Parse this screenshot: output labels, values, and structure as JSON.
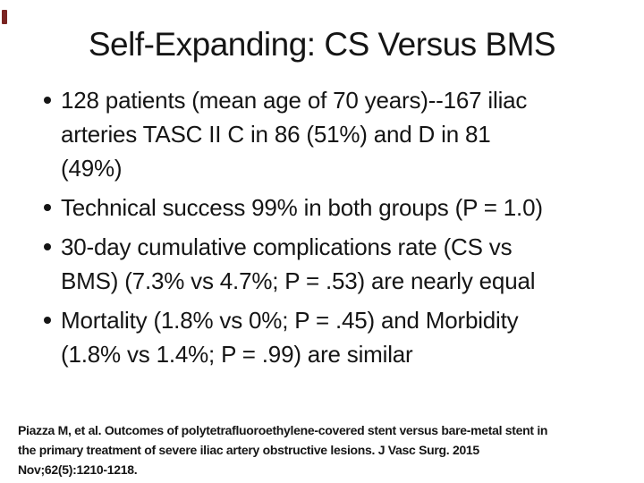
{
  "slide": {
    "title": "Self-Expanding: CS Versus BMS",
    "bullets": [
      {
        "lines": [
          "128 patients (mean age of 70 years)--167 iliac",
          "arteries TASC II C in 86 (51%) and D in 81",
          "(49%)"
        ]
      },
      {
        "lines": [
          "Technical success 99% in both groups (P = 1.0)"
        ]
      },
      {
        "lines": [
          "30-day cumulative complications rate (CS vs",
          "BMS) (7.3% vs 4.7%; P = .53) are nearly equal"
        ]
      },
      {
        "lines": [
          "Mortality (1.8% vs 0%; P = .45) and Morbidity",
          "(1.8% vs 1.4%; P = .99) are similar"
        ]
      }
    ],
    "citation_lines": [
      "Piazza M, et al. Outcomes of polytetrafluoroethylene-covered stent versus bare-metal stent in",
      "the primary treatment of severe iliac artery obstructive lesions. J Vasc Surg. 2015",
      "Nov;62(5):1210-1218."
    ],
    "colors": {
      "text": "#151515",
      "corner_mark": "#7a2422",
      "background": "#ffffff"
    }
  }
}
